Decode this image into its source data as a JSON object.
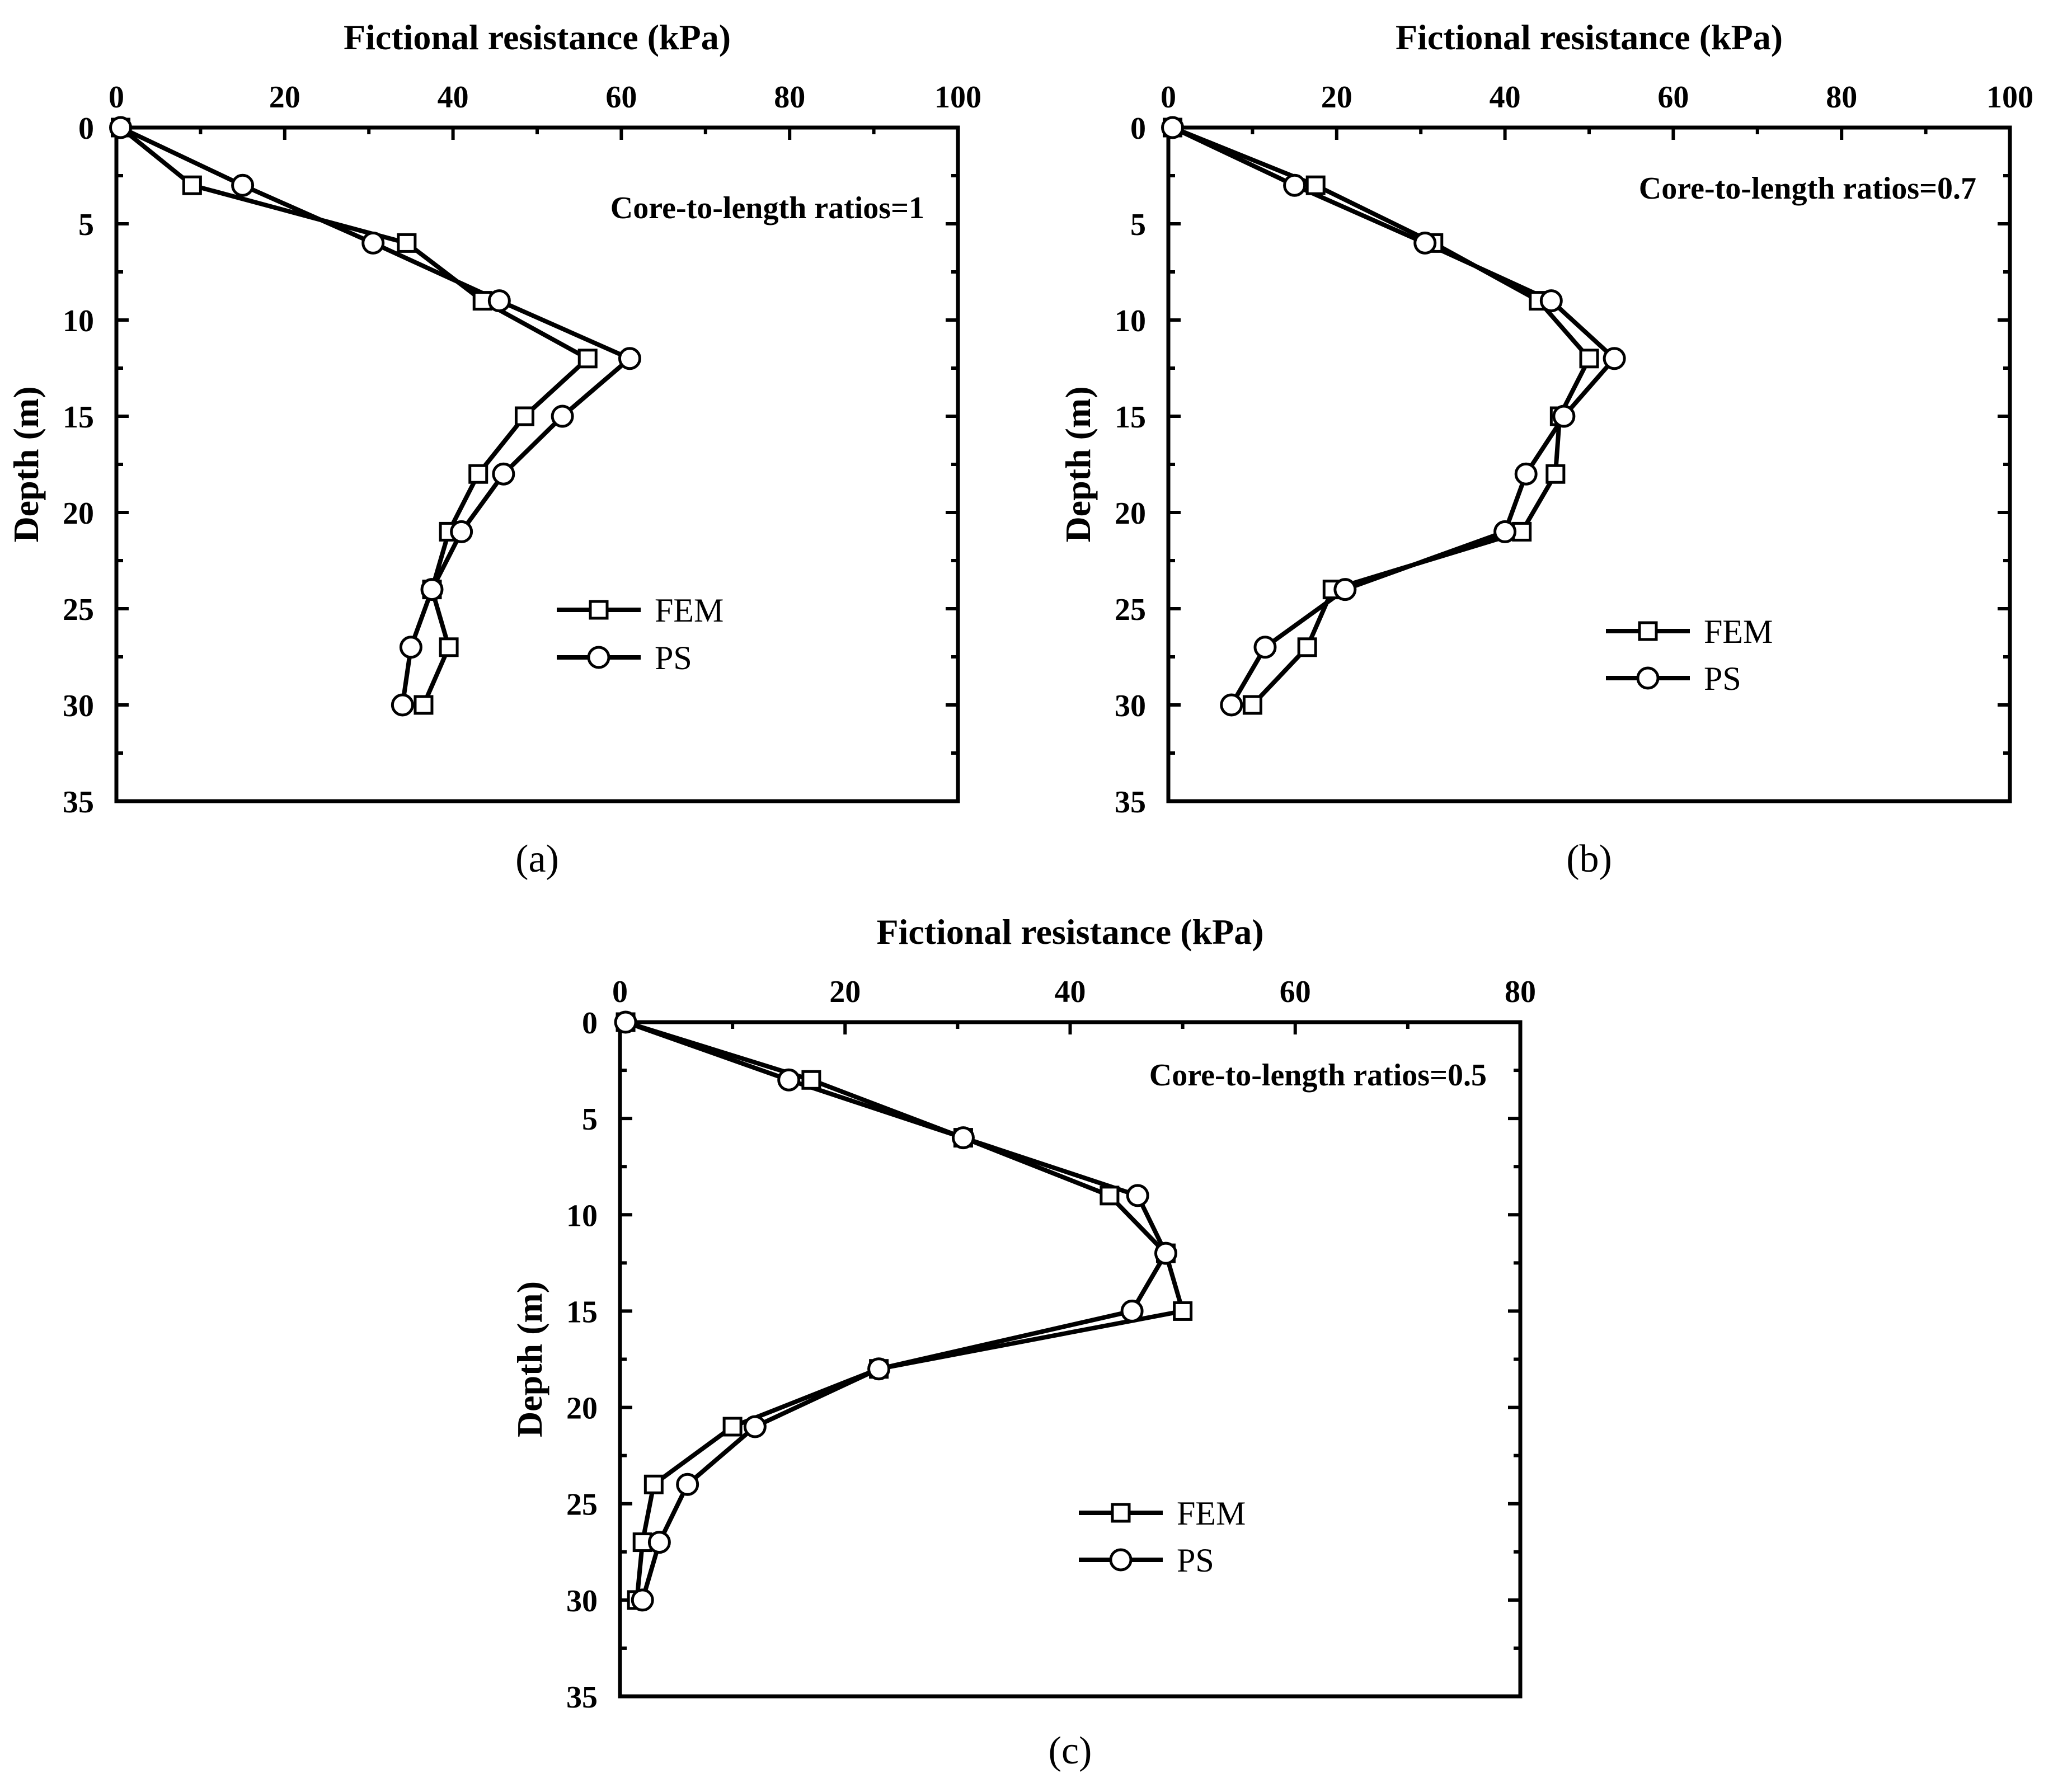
{
  "chart_data": [
    {
      "type": "line",
      "panel_label": "(a)",
      "xlabel": "Fictional resistance (kPa)",
      "ylabel": "Depth (m)",
      "xlim": [
        0,
        100
      ],
      "ylim": [
        0,
        35
      ],
      "x_ticks": [
        0,
        20,
        40,
        60,
        80,
        100
      ],
      "y_ticks": [
        0,
        5,
        10,
        15,
        20,
        25,
        30,
        35
      ],
      "annotation": "Core-to-length ratios=1",
      "legend_position": "lower-right",
      "series": [
        {
          "name": "FEM",
          "marker": "square",
          "x": [
            0.5,
            9,
            34.5,
            43.5,
            56,
            48.5,
            43,
            39.5,
            37.5,
            39.5,
            36.5
          ],
          "y": [
            0,
            3,
            6,
            9,
            12,
            15,
            18,
            21,
            24,
            27,
            30
          ]
        },
        {
          "name": "PS",
          "marker": "circle",
          "x": [
            0.5,
            15,
            30.5,
            45.5,
            61,
            53,
            46,
            41,
            37.5,
            35,
            34
          ],
          "y": [
            0,
            3,
            6,
            9,
            12,
            15,
            18,
            21,
            24,
            27,
            30
          ]
        }
      ]
    },
    {
      "type": "line",
      "panel_label": "(b)",
      "xlabel": "Fictional resistance (kPa)",
      "ylabel": "Depth (m)",
      "xlim": [
        0,
        100
      ],
      "ylim": [
        0,
        35
      ],
      "x_ticks": [
        0,
        20,
        40,
        60,
        80,
        100
      ],
      "y_ticks": [
        0,
        5,
        10,
        15,
        20,
        25,
        30,
        35
      ],
      "annotation": "Core-to-length ratios=0.7",
      "legend_position": "lower-right",
      "series": [
        {
          "name": "FEM",
          "marker": "square",
          "x": [
            0.5,
            17.5,
            31.5,
            44,
            50,
            46.5,
            46,
            42,
            19.5,
            16.5,
            10
          ],
          "y": [
            0,
            3,
            6,
            9,
            12,
            15,
            18,
            21,
            24,
            27,
            30
          ]
        },
        {
          "name": "PS",
          "marker": "circle",
          "x": [
            0.5,
            15,
            30.5,
            45.5,
            53,
            47,
            42.5,
            40,
            21,
            11.5,
            7.5
          ],
          "y": [
            0,
            3,
            6,
            9,
            12,
            15,
            18,
            21,
            24,
            27,
            30
          ]
        }
      ]
    },
    {
      "type": "line",
      "panel_label": "(c)",
      "xlabel": "Fictional resistance (kPa)",
      "ylabel": "Depth (m)",
      "xlim": [
        0,
        80
      ],
      "ylim": [
        0,
        35
      ],
      "x_ticks": [
        0,
        20,
        40,
        60,
        80
      ],
      "y_ticks": [
        0,
        5,
        10,
        15,
        20,
        25,
        30,
        35
      ],
      "annotation": "Core-to-length ratios=0.5",
      "legend_position": "lower-right",
      "series": [
        {
          "name": "FEM",
          "marker": "square",
          "x": [
            0.5,
            17,
            30.5,
            43.5,
            48.5,
            50,
            23,
            10,
            3,
            2,
            1.5
          ],
          "y": [
            0,
            3,
            6,
            9,
            12,
            15,
            18,
            21,
            24,
            27,
            30
          ]
        },
        {
          "name": "PS",
          "marker": "circle",
          "x": [
            0.5,
            15,
            30.5,
            46,
            48.5,
            45.5,
            23,
            12,
            6,
            3.5,
            2
          ],
          "y": [
            0,
            3,
            6,
            9,
            12,
            15,
            18,
            21,
            24,
            27,
            30
          ]
        }
      ]
    }
  ]
}
